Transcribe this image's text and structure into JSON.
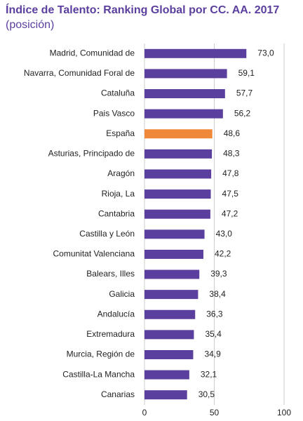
{
  "chart_data": {
    "type": "bar",
    "orientation": "horizontal",
    "title": "Índice de Talento: Ranking Global por CC. AA. 2017",
    "subtitle": "(posición)",
    "categories": [
      "Madrid, Comunidad de",
      "Navarra, Comunidad Foral de",
      "Cataluña",
      "Pais Vasco",
      "España",
      "Asturias, Principado de",
      "Aragón",
      "Rioja, La",
      "Cantabria",
      "Castilla y León",
      "Comunitat Valenciana",
      "Balears, Illes",
      "Galicia",
      "Andalucía",
      "Extremadura",
      "Murcia, Región de",
      "Castilla-La Mancha",
      "Canarias"
    ],
    "values": [
      73.0,
      59.1,
      57.7,
      56.2,
      48.6,
      48.3,
      47.8,
      47.5,
      47.2,
      43.0,
      42.2,
      39.3,
      38.4,
      36.3,
      35.4,
      34.9,
      32.1,
      30.5
    ],
    "value_labels": [
      "73,0",
      "59,1",
      "57,7",
      "56,2",
      "48,6",
      "48,3",
      "47,8",
      "47,5",
      "47,2",
      "43,0",
      "42,2",
      "39,3",
      "38,4",
      "36,3",
      "35,4",
      "34,9",
      "32,1",
      "30,5"
    ],
    "colors": [
      "#5b3f9e",
      "#5b3f9e",
      "#5b3f9e",
      "#5b3f9e",
      "#f0883a",
      "#5b3f9e",
      "#5b3f9e",
      "#5b3f9e",
      "#5b3f9e",
      "#5b3f9e",
      "#5b3f9e",
      "#5b3f9e",
      "#5b3f9e",
      "#5b3f9e",
      "#5b3f9e",
      "#5b3f9e",
      "#5b3f9e",
      "#5b3f9e"
    ],
    "xlim": [
      0,
      100
    ],
    "xticks": [
      0,
      50,
      100
    ],
    "grid": true
  }
}
